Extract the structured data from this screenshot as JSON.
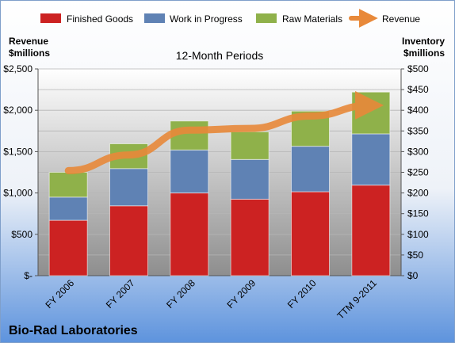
{
  "chart_data": {
    "type": "bar",
    "stacked": true,
    "title": "12-Month Periods",
    "footer": "Bio-Rad Laboratories",
    "categories": [
      "FY 2006",
      "FY 2007",
      "FY 2008",
      "FY 2009",
      "FY 2010",
      "TTM 9-2011"
    ],
    "series": [
      {
        "name": "Finished Goods",
        "axis": "right",
        "color": "#cc2222",
        "values": [
          134,
          169,
          200,
          185,
          203,
          219
        ]
      },
      {
        "name": "Work in Progress",
        "axis": "right",
        "color": "#5f82b4",
        "values": [
          56,
          90,
          104,
          96,
          110,
          124
        ]
      },
      {
        "name": "Raw Materials",
        "axis": "right",
        "color": "#8fb14a",
        "values": [
          60,
          60,
          70,
          67,
          85,
          101
        ]
      }
    ],
    "line_series": {
      "name": "Revenue",
      "axis": "left",
      "color": "#e8893a",
      "values": [
        1270,
        1460,
        1760,
        1780,
        1930,
        2060
      ]
    },
    "left_axis": {
      "label_line1": "Revenue",
      "label_line2": "$millions",
      "ylim": [
        0,
        2500
      ],
      "ticks": [
        "$-",
        "$500",
        "$1,000",
        "$1,500",
        "$2,000",
        "$2,500"
      ]
    },
    "right_axis": {
      "label_line1": "Inventory",
      "label_line2": "$millions",
      "ylim": [
        0,
        500
      ],
      "ticks": [
        "$0",
        "$50",
        "$100",
        "$150",
        "$200",
        "$250",
        "$300",
        "$350",
        "$400",
        "$450",
        "$500"
      ]
    },
    "grid": true,
    "legend_position": "top"
  }
}
